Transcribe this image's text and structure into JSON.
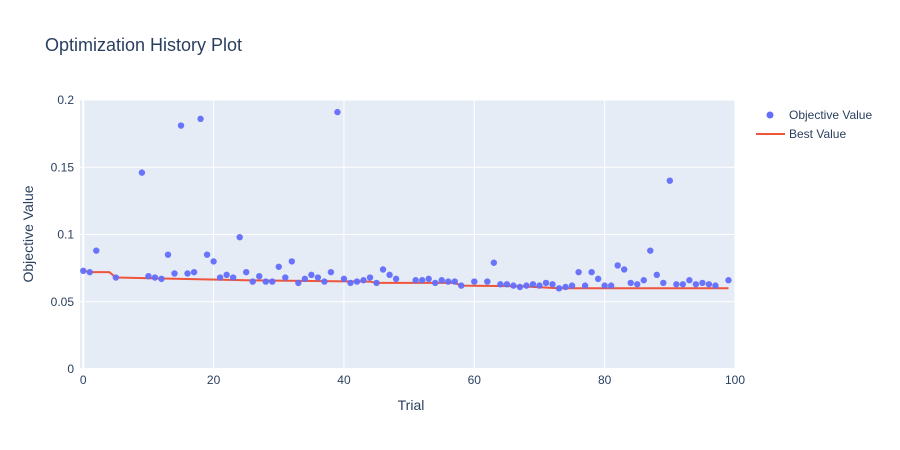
{
  "chart_data": {
    "type": "scatter",
    "title": "Optimization History Plot",
    "xlabel": "Trial",
    "ylabel": "Objective Value",
    "xlim": [
      -0.5,
      100
    ],
    "ylim": [
      0,
      0.2
    ],
    "x_ticks": [
      0,
      20,
      40,
      60,
      80,
      100
    ],
    "y_ticks": [
      0,
      0.05,
      0.1,
      0.15,
      0.2
    ],
    "y_tick_labels": [
      "0",
      "0.05",
      "0.1",
      "0.15",
      "0.2"
    ],
    "grid": true,
    "legend_position": "top-right",
    "series": [
      {
        "name": "Objective Value",
        "type": "scatter",
        "color": "#636efa",
        "x": [
          0,
          1,
          2,
          5,
          9,
          10,
          11,
          12,
          13,
          14,
          15,
          16,
          17,
          18,
          19,
          20,
          21,
          22,
          23,
          24,
          25,
          26,
          27,
          28,
          29,
          30,
          31,
          32,
          33,
          34,
          35,
          36,
          37,
          38,
          39,
          40,
          41,
          42,
          43,
          44,
          45,
          46,
          47,
          48,
          51,
          52,
          53,
          54,
          55,
          56,
          57,
          58,
          60,
          62,
          63,
          64,
          65,
          66,
          67,
          68,
          69,
          70,
          71,
          72,
          73,
          74,
          75,
          76,
          77,
          78,
          79,
          80,
          81,
          82,
          83,
          84,
          85,
          86,
          87,
          88,
          89,
          90,
          91,
          92,
          93,
          94,
          95,
          96,
          97,
          99
        ],
        "y": [
          0.073,
          0.072,
          0.088,
          0.068,
          0.146,
          0.069,
          0.068,
          0.067,
          0.085,
          0.071,
          0.181,
          0.071,
          0.072,
          0.186,
          0.085,
          0.08,
          0.068,
          0.07,
          0.068,
          0.098,
          0.072,
          0.065,
          0.069,
          0.065,
          0.065,
          0.076,
          0.068,
          0.08,
          0.064,
          0.067,
          0.07,
          0.068,
          0.065,
          0.072,
          0.191,
          0.067,
          0.064,
          0.065,
          0.066,
          0.068,
          0.064,
          0.074,
          0.07,
          0.067,
          0.066,
          0.066,
          0.067,
          0.064,
          0.066,
          0.065,
          0.065,
          0.062,
          0.065,
          0.065,
          0.079,
          0.063,
          0.063,
          0.062,
          0.061,
          0.062,
          0.063,
          0.062,
          0.064,
          0.063,
          0.06,
          0.061,
          0.062,
          0.072,
          0.062,
          0.072,
          0.067,
          0.062,
          0.062,
          0.077,
          0.074,
          0.064,
          0.063,
          0.066,
          0.088,
          0.07,
          0.064,
          0.14,
          0.063,
          0.063,
          0.066,
          0.063,
          0.064,
          0.063,
          0.062,
          0.066
        ]
      },
      {
        "name": "Best Value",
        "type": "line",
        "color": "#ef553b",
        "x": [
          0,
          1,
          4,
          5,
          25,
          44,
          45,
          57,
          58,
          67,
          73,
          99
        ],
        "y": [
          0.073,
          0.072,
          0.072,
          0.068,
          0.066,
          0.065,
          0.064,
          0.064,
          0.062,
          0.0615,
          0.06,
          0.06
        ]
      }
    ]
  }
}
